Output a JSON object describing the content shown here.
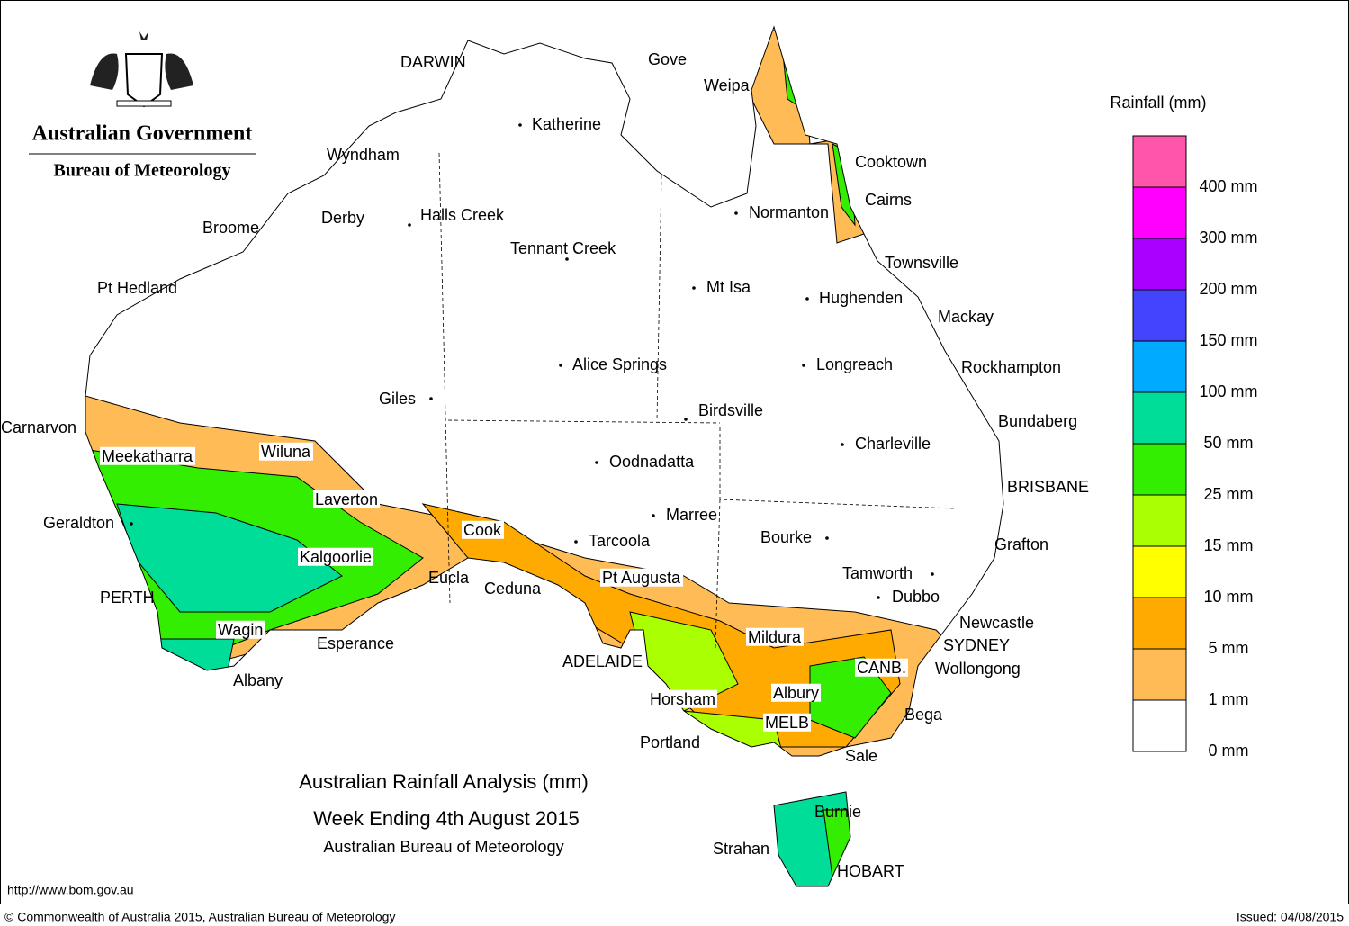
{
  "header": {
    "agency": "Australian Government",
    "bureau": "Bureau of Meteorology"
  },
  "places": [
    "DARWIN",
    "Gove",
    "Weipa",
    "Katherine",
    "Cooktown",
    "Wyndham",
    "Cairns",
    "Normanton",
    "Halls Creek",
    "Derby",
    "Broome",
    "Tennant Creek",
    "Townsville",
    "Pt Hedland",
    "Mt Isa",
    "Hughenden",
    "Mackay",
    "Alice Springs",
    "Longreach",
    "Rockhampton",
    "Giles",
    "Birdsville",
    "Bundaberg",
    "Carnarvon",
    "Charleville",
    "Meekatharra",
    "Wiluna",
    "Oodnadatta",
    "BRISBANE",
    "Laverton",
    "Marree",
    "Geraldton",
    "Cook",
    "Bourke",
    "Tarcoola",
    "Grafton",
    "Kalgoorlie",
    "Tamworth",
    "Eucla",
    "Pt Augusta",
    "Ceduna",
    "PERTH",
    "Dubbo",
    "Newcastle",
    "Wagin",
    "Mildura",
    "Esperance",
    "SYDNEY",
    "ADELAIDE",
    "CANB.",
    "Wollongong",
    "Albany",
    "Albury",
    "Horsham",
    "Bega",
    "MELB",
    "Portland",
    "Sale",
    "Burnie",
    "Strahan",
    "HOBART"
  ],
  "legend": {
    "title": "Rainfall (mm)",
    "items": [
      {
        "label": "400 mm",
        "color": "#ff55aa"
      },
      {
        "label": "300 mm",
        "color": "#ff00ff"
      },
      {
        "label": "200 mm",
        "color": "#aa00ff"
      },
      {
        "label": "150 mm",
        "color": "#4444ff"
      },
      {
        "label": "100 mm",
        "color": "#00aaff"
      },
      {
        "label": "50 mm",
        "color": "#00dd99"
      },
      {
        "label": "25 mm",
        "color": "#33ee00"
      },
      {
        "label": "15 mm",
        "color": "#aaff00"
      },
      {
        "label": "10 mm",
        "color": "#ffff00"
      },
      {
        "label": "5 mm",
        "color": "#ffaa00"
      },
      {
        "label": "1 mm",
        "color": "#ffbb55"
      },
      {
        "label": "0 mm",
        "color": "#ffffff"
      }
    ]
  },
  "title": {
    "lines": [
      "Australian Rainfall Analysis (mm)",
      "Week Ending 4th August 2015",
      "Australian Bureau of Meteorology"
    ]
  },
  "footer": {
    "url": "http://www.bom.gov.au",
    "copyright": "© Commonwealth of Australia 2015, Australian Bureau of Meteorology",
    "issued": "Issued: 04/08/2015"
  }
}
